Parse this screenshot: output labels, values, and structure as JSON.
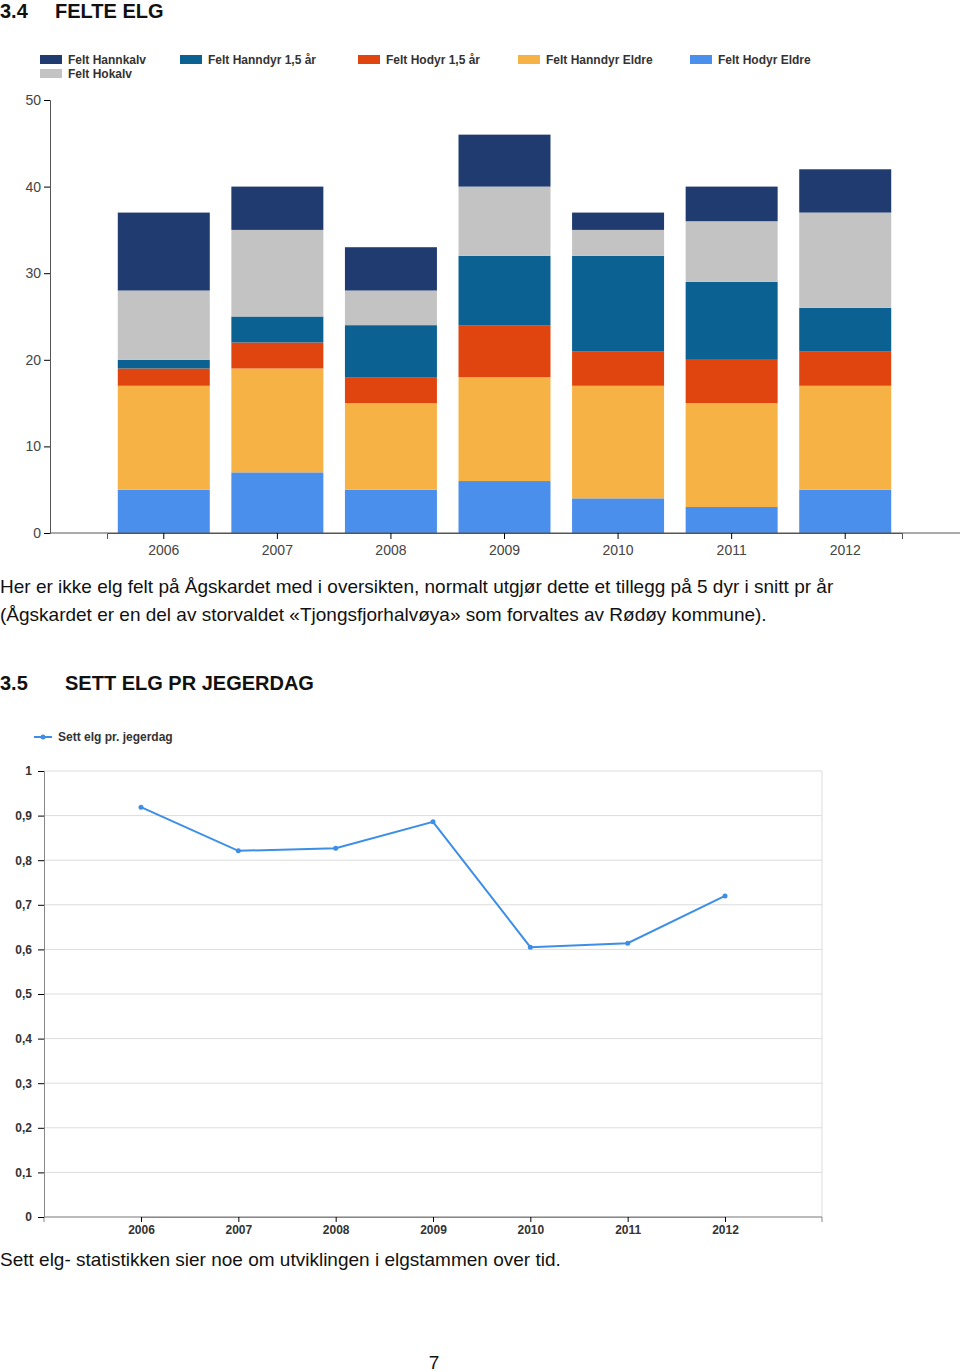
{
  "heading_1": {
    "number": "3.4",
    "title": "FELTE ELG"
  },
  "paragraph_1": "Her er ikke elg felt på Ågskardet med i oversikten, normalt utgjør dette et tillegg på 5 dyr i snitt pr år (Ågskardet er en del av storvaldet «Tjongsfjorhalvøya» som forvaltes av Rødøy kommune).",
  "heading_2": {
    "number": "3.5",
    "title": "SETT ELG PR JEGERDAG"
  },
  "paragraph_2": "Sett elg- statistikken sier noe om utviklingen i elgstammen over tid.",
  "page_number": 7,
  "chart_data": [
    {
      "type": "bar",
      "stacked": true,
      "grid": false,
      "categories": [
        "2006",
        "2007",
        "2008",
        "2009",
        "2010",
        "2011",
        "2012"
      ],
      "series": [
        {
          "name": "Felt Hannkalv",
          "color": "#1f3b6f",
          "values": [
            9,
            5,
            5,
            6,
            2,
            4,
            5
          ]
        },
        {
          "name": "Felt Hanndyr 1,5 år",
          "color": "#0a6192",
          "values": [
            1,
            3,
            6,
            8,
            11,
            9,
            5
          ]
        },
        {
          "name": "Felt Hodyr 1,5 år",
          "color": "#e0450f",
          "values": [
            2,
            3,
            3,
            6,
            4,
            5,
            4
          ]
        },
        {
          "name": "Felt Hanndyr Eldre",
          "color": "#f7b246",
          "values": [
            12,
            12,
            10,
            12,
            13,
            12,
            12
          ]
        },
        {
          "name": "Felt Hodyr Eldre",
          "color": "#4a8fec",
          "values": [
            5,
            7,
            5,
            6,
            4,
            3,
            5
          ]
        },
        {
          "name": "Felt Hokalv",
          "color": "#c3c3c3",
          "values": [
            8,
            10,
            4,
            8,
            3,
            7,
            11
          ]
        }
      ],
      "ylim": [
        0,
        50
      ],
      "yticks": [
        0,
        10,
        20,
        30,
        40,
        50
      ]
    },
    {
      "type": "line",
      "grid": true,
      "categories": [
        "2006",
        "2007",
        "2008",
        "2009",
        "2010",
        "2011",
        "2012"
      ],
      "series": [
        {
          "name": "Sett elg pr. jegerdag",
          "color": "#3d8ee6",
          "marker": "circle",
          "values": [
            0.919,
            0.821,
            0.827,
            0.886,
            0.605,
            0.614,
            0.72
          ]
        }
      ],
      "ylim": [
        0,
        1
      ],
      "yticks": [
        0,
        {
          "value": 0.1,
          "label": "0,1"
        },
        {
          "value": 0.2,
          "label": "0,2"
        },
        {
          "value": 0.3,
          "label": "0,3"
        },
        {
          "value": 0.4,
          "label": "0,4"
        },
        {
          "value": 0.5,
          "label": "0,5"
        },
        {
          "value": 0.6,
          "label": "0,6"
        },
        {
          "value": 0.7,
          "label": "0,7"
        },
        {
          "value": 0.8,
          "label": "0,8"
        },
        {
          "value": 0.9,
          "label": "0,9"
        },
        1
      ]
    }
  ]
}
